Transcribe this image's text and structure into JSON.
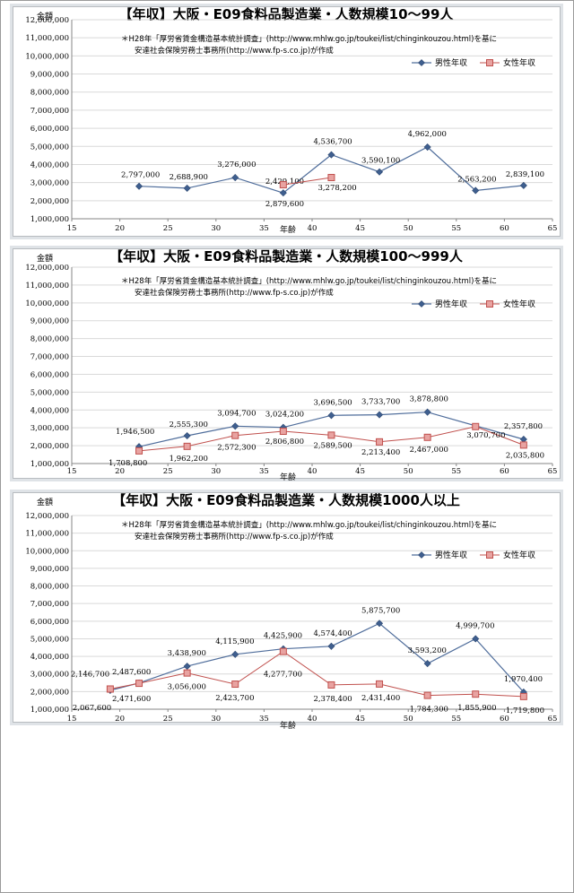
{
  "colors": {
    "male": "#4f6d9b",
    "male_fill": "#3f5f8f",
    "female": "#c0504d",
    "female_fill": "#e8a3a1",
    "grid": "#d9d9d9",
    "axis": "#868686",
    "panel_bg": "#dfe3e7"
  },
  "chart_data": [
    {
      "type": "line",
      "title": "【年収】大阪・E09食料品製造業・人数規模10～99人",
      "note_line1": "＊H28年「厚労省賃金構造基本統計調査」(http://www.mhlw.go.jp/toukei/list/chinginkouzou.html)を基に",
      "note_line2": "安達社会保険労務士事務所(http://www.fp-s.co.jp)が作成",
      "ylabel": "金額",
      "xlabel": "年齢",
      "xlim": [
        15,
        65
      ],
      "ylim": [
        1000000,
        12000000
      ],
      "x_ticks": [
        "15",
        "20",
        "25",
        "30",
        "35",
        "40",
        "45",
        "50",
        "55",
        "60",
        "65"
      ],
      "y_ticks": [
        "1,000,000",
        "2,000,000",
        "3,000,000",
        "4,000,000",
        "5,000,000",
        "6,000,000",
        "7,000,000",
        "8,000,000",
        "9,000,000",
        "10,000,000",
        "11,000,000",
        "12,000,000"
      ],
      "legend": "top-right",
      "series": [
        {
          "name": "男性年収",
          "x": [
            22,
            27,
            32,
            37,
            42,
            47,
            52,
            57,
            62
          ],
          "values": [
            2797000,
            2688900,
            3276000,
            2429100,
            4536700,
            3590100,
            4962000,
            2563200,
            2839100
          ],
          "labels": [
            "2,797,000",
            "2,688,900",
            "3,276,000",
            "2,429,100",
            "4,536,700",
            "3,590,100",
            "4,962,000",
            "2,563,200",
            "2,839,100"
          ]
        },
        {
          "name": "女性年収",
          "x": [
            37,
            42
          ],
          "values": [
            2879600,
            3278200
          ],
          "labels": [
            "2,879,600",
            "3,278,200"
          ]
        }
      ]
    },
    {
      "type": "line",
      "title": "【年収】大阪・E09食料品製造業・人数規模100～999人",
      "note_line1": "＊H28年「厚労省賃金構造基本統計調査」(http://www.mhlw.go.jp/toukei/list/chinginkouzou.html)を基に",
      "note_line2": "安達社会保険労務士事務所(http://www.fp-s.co.jp)が作成",
      "ylabel": "金額",
      "xlabel": "年齢",
      "xlim": [
        15,
        65
      ],
      "ylim": [
        1000000,
        12000000
      ],
      "x_ticks": [
        "15",
        "20",
        "25",
        "30",
        "35",
        "40",
        "45",
        "50",
        "55",
        "60",
        "65"
      ],
      "y_ticks": [
        "1,000,000",
        "2,000,000",
        "3,000,000",
        "4,000,000",
        "5,000,000",
        "6,000,000",
        "7,000,000",
        "8,000,000",
        "9,000,000",
        "10,000,000",
        "11,000,000",
        "12,000,000"
      ],
      "legend": "top-right",
      "series": [
        {
          "name": "男性年収",
          "x": [
            22,
            27,
            32,
            37,
            42,
            47,
            52,
            62
          ],
          "values": [
            1946500,
            2555300,
            3094700,
            3024200,
            3696500,
            3733700,
            3878800,
            2357800
          ],
          "labels": [
            "1,946,500",
            "2,555,300",
            "3,094,700",
            "3,024,200",
            "3,696,500",
            "3,733,700",
            "3,878,800",
            "2,357,800"
          ]
        },
        {
          "name": "女性年収",
          "x": [
            22,
            27,
            32,
            37,
            42,
            47,
            52,
            57,
            62
          ],
          "values": [
            1708800,
            1962200,
            2572300,
            2806800,
            2589500,
            2213400,
            2467000,
            3070700,
            2035800
          ],
          "labels": [
            "1,708,800",
            "1,962,200",
            "2,572,300",
            "2,806,800",
            "2,589,500",
            "2,213,400",
            "2,467,000",
            "3,070,700",
            "2,035,800"
          ]
        }
      ]
    },
    {
      "type": "line",
      "title": "【年収】大阪・E09食料品製造業・人数規模1000人以上",
      "note_line1": "＊H28年「厚労省賃金構造基本統計調査」(http://www.mhlw.go.jp/toukei/list/chinginkouzou.html)を基に",
      "note_line2": "安達社会保険労務士事務所(http://www.fp-s.co.jp)が作成",
      "ylabel": "金額",
      "xlabel": "年齢",
      "xlim": [
        15,
        65
      ],
      "ylim": [
        1000000,
        12000000
      ],
      "x_ticks": [
        "15",
        "20",
        "25",
        "30",
        "35",
        "40",
        "45",
        "50",
        "55",
        "60",
        "65"
      ],
      "y_ticks": [
        "1,000,000",
        "2,000,000",
        "3,000,000",
        "4,000,000",
        "5,000,000",
        "6,000,000",
        "7,000,000",
        "8,000,000",
        "9,000,000",
        "10,000,000",
        "11,000,000",
        "12,000,000"
      ],
      "legend": "top-right",
      "series": [
        {
          "name": "男性年収",
          "x": [
            19,
            22,
            27,
            32,
            37,
            42,
            47,
            52,
            57,
            62
          ],
          "values": [
            2067600,
            2487600,
            3438900,
            4115900,
            4425900,
            4574400,
            5875700,
            3593200,
            4999700,
            1970400
          ],
          "labels": [
            "2,067,600",
            "2,487,600",
            "3,438,900",
            "4,115,900",
            "4,425,900",
            "4,574,400",
            "5,875,700",
            "3,593,200",
            "4,999,700",
            "1,970,400"
          ]
        },
        {
          "name": "女性年収",
          "x": [
            19,
            22,
            27,
            32,
            37,
            42,
            47,
            52,
            57,
            62
          ],
          "values": [
            2146700,
            2471600,
            3056000,
            2423700,
            4277700,
            2378400,
            2431400,
            1784300,
            1855900,
            1719800
          ],
          "labels": [
            "2,146,700",
            "2,471,600",
            "3,056,000",
            "2,423,700",
            "4,277,700",
            "2,378,400",
            "2,431,400",
            "1,784,300",
            "1,855,900",
            "1,719,800"
          ]
        }
      ]
    }
  ]
}
